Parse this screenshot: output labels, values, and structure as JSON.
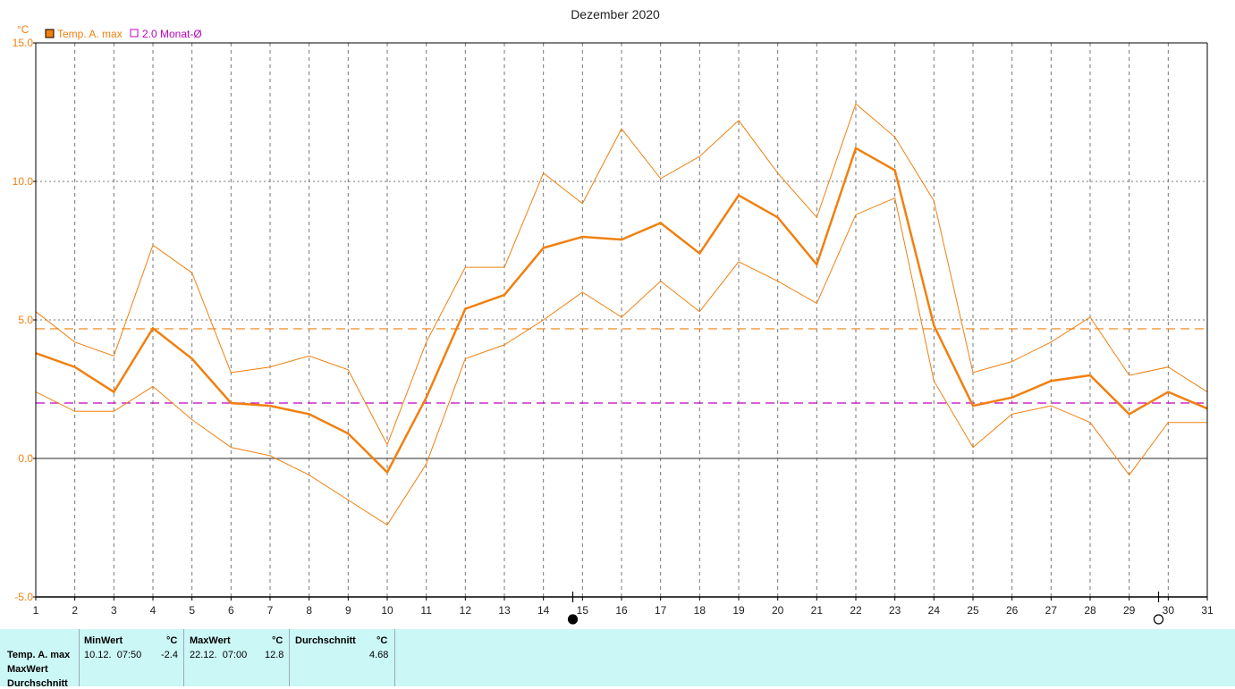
{
  "chart_data": {
    "type": "line",
    "title": "Dezember 2020",
    "y_unit": "°C",
    "x": [
      1,
      2,
      3,
      4,
      5,
      6,
      7,
      8,
      9,
      10,
      11,
      12,
      13,
      14,
      15,
      16,
      17,
      18,
      19,
      20,
      21,
      22,
      23,
      24,
      25,
      26,
      27,
      28,
      29,
      30,
      31
    ],
    "ylim": [
      -5.0,
      15.0
    ],
    "yticks": [
      "15.0",
      "10.0",
      "5.0",
      "0.0",
      "-5.0"
    ],
    "grid": true,
    "legend_position": "top-left",
    "series": [
      {
        "name": "Temp. A. max",
        "color": "#f08010",
        "values": [
          3.8,
          3.3,
          2.4,
          4.7,
          3.6,
          2.0,
          1.9,
          1.6,
          0.9,
          -0.5,
          2.2,
          5.4,
          5.9,
          7.6,
          8.0,
          7.9,
          8.5,
          7.4,
          9.5,
          8.7,
          7.0,
          11.2,
          10.4,
          4.8,
          1.9,
          2.2,
          2.8,
          3.0,
          1.6,
          2.4,
          1.8
        ]
      },
      {
        "name": "",
        "color": "#f08010",
        "role": "band-upper",
        "values": [
          5.3,
          4.2,
          3.7,
          7.7,
          6.7,
          3.1,
          3.3,
          3.7,
          3.2,
          0.5,
          4.2,
          6.9,
          6.9,
          10.3,
          9.2,
          11.9,
          10.1,
          10.9,
          12.2,
          10.3,
          8.7,
          12.8,
          11.6,
          9.3,
          3.1,
          3.5,
          4.2,
          5.1,
          3.0,
          3.3,
          2.4
        ]
      },
      {
        "name": "",
        "color": "#f08010",
        "role": "band-lower",
        "values": [
          2.4,
          1.7,
          1.7,
          2.6,
          1.4,
          0.4,
          0.1,
          -0.6,
          -1.5,
          -2.4,
          -0.2,
          3.6,
          4.1,
          5.0,
          6.0,
          5.1,
          6.4,
          5.3,
          7.1,
          6.4,
          5.6,
          8.8,
          9.4,
          2.8,
          0.4,
          1.6,
          1.9,
          1.3,
          -0.6,
          1.3,
          1.3
        ]
      }
    ],
    "reference_lines": [
      {
        "value": 4.68,
        "color": "#f08010",
        "style": "dashed"
      },
      {
        "label": "2.0 Monat-Ø",
        "value": 2.0,
        "color": "#c000c0",
        "style": "dashed"
      }
    ],
    "markers": [
      {
        "day": 15,
        "symbol": "full-moon-icon"
      },
      {
        "day": 30,
        "symbol": "new-moon-icon"
      }
    ]
  },
  "stats": {
    "row_labels": [
      "Temp. A. max",
      "MaxWert",
      "Durchschnitt"
    ],
    "min_header": "MinWert",
    "max_header": "MaxWert",
    "avg_header": "Durchschnitt",
    "unit": "°C",
    "min_time": "10.12.  07:50",
    "min_value": "-2.4",
    "max_time": "22.12.  07:00",
    "max_value": "12.8",
    "avg_value": "4.68"
  }
}
